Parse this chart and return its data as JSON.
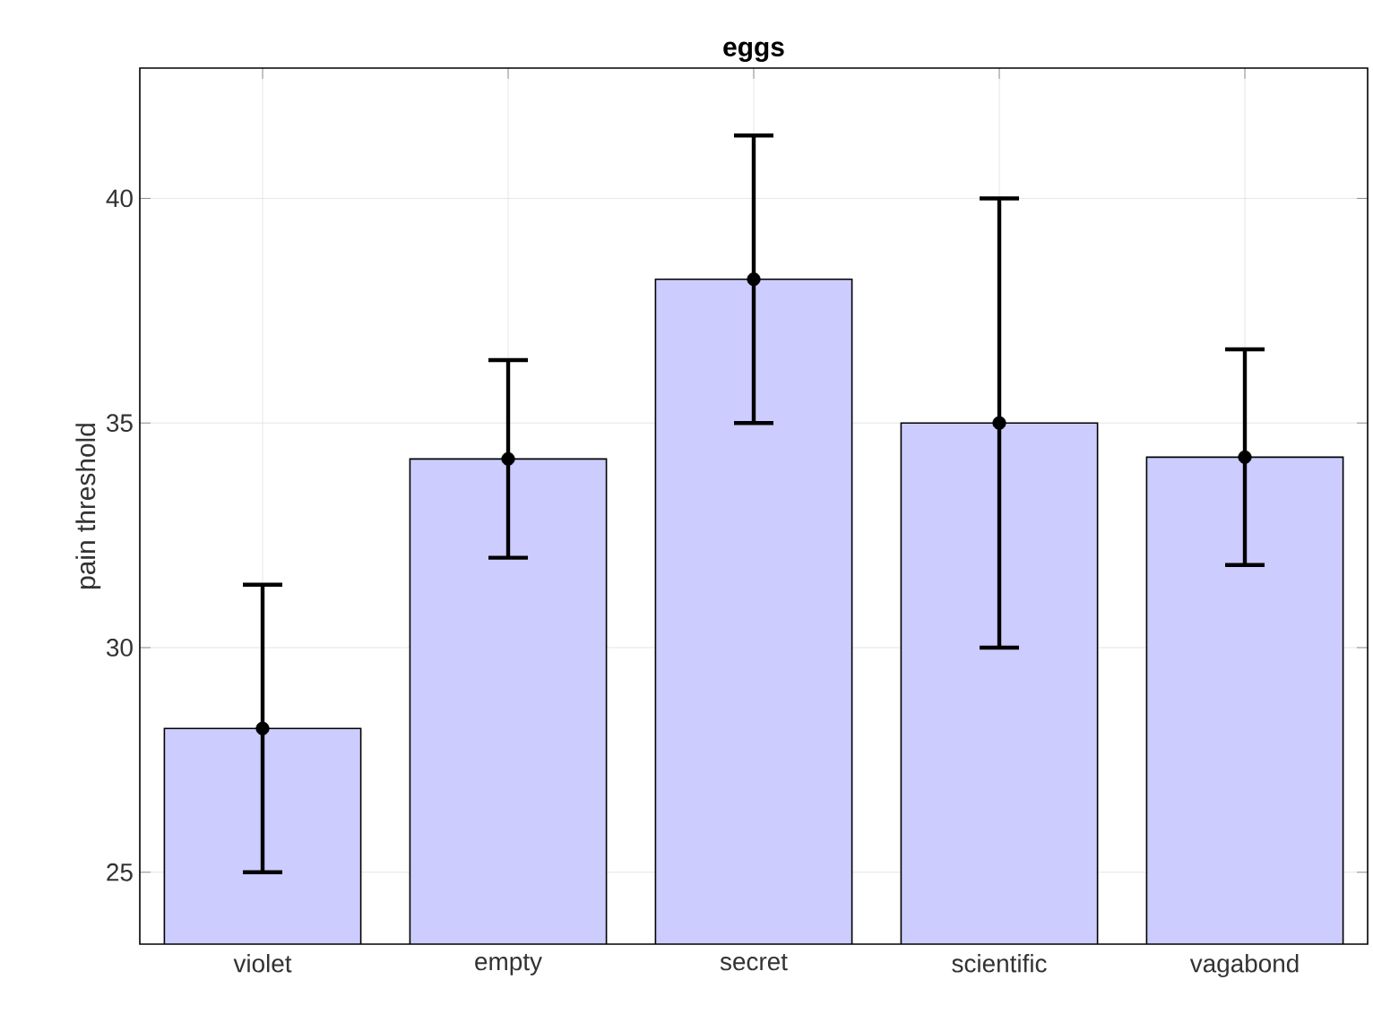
{
  "chart_data": {
    "type": "bar",
    "title": "eggs",
    "ylabel": "pain threshold",
    "categories": [
      "violet",
      "empty",
      "secret",
      "scientific",
      "vagabond"
    ],
    "series": [
      {
        "color": "#ccccff",
        "values": [
          28.2,
          34.2,
          38.2,
          35.0,
          34.24
        ]
      },
      {
        "type": "scatter",
        "color": "#000000",
        "x": [
          "violet",
          "empty",
          "secret",
          "scientific",
          "vagabond"
        ],
        "values": [
          28.2,
          34.2,
          38.2,
          35.0,
          34.24
        ],
        "errors": [
          3.2,
          2.2,
          3.2,
          5.0,
          2.4
        ]
      }
    ],
    "ylim": [
      23.4,
      42.9
    ],
    "yticks": [
      25,
      30,
      35,
      40
    ],
    "grid": true,
    "marker": "circle"
  }
}
